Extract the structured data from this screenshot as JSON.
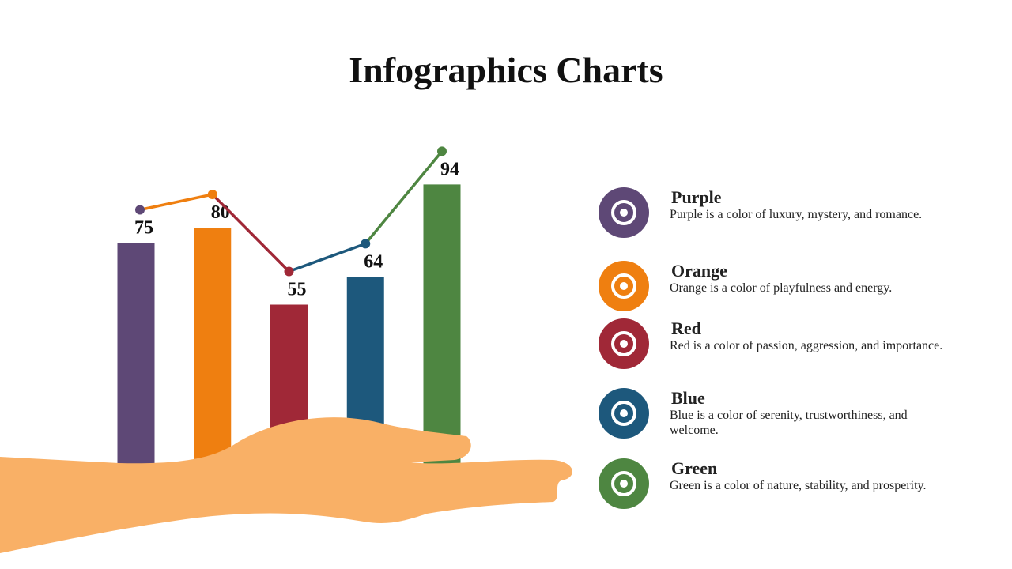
{
  "chart_data": {
    "type": "bar",
    "title": "Infographics Charts",
    "categories": [
      "Purple",
      "Orange",
      "Red",
      "Blue",
      "Green"
    ],
    "values": [
      75,
      80,
      55,
      64,
      94
    ],
    "colors": [
      "#5e4876",
      "#ef7f10",
      "#a02837",
      "#1d587c",
      "#4e8641"
    ],
    "descriptions": [
      "Purple is a color of luxury, mystery, and romance.",
      "Orange is a color of playfulness and energy.",
      "Red is a color of passion, aggression, and importance.",
      "Blue is a color of serenity, trustworthiness, and welcome.",
      "Green is a color of nature, stability, and prosperity."
    ]
  }
}
